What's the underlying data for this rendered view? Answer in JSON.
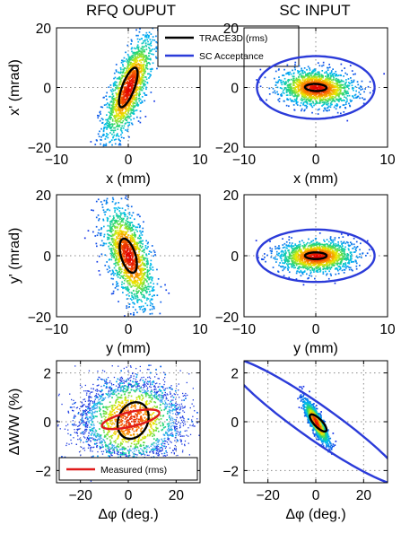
{
  "colors": {
    "black": "#000000",
    "blue": "#2b3bd9",
    "red": "#e01b1b",
    "grid": "#8a8a8a"
  },
  "column_titles": [
    "RFQ OUPUT",
    "SC INPUT"
  ],
  "chart_data": [
    {
      "type": "scatter",
      "panel": "x-rfq",
      "xlabel": "x (mm)",
      "ylabel": "x' (mrad)",
      "xlim": [
        -10,
        10
      ],
      "ylim": [
        -20,
        20
      ],
      "xticks": [
        -10,
        0,
        10
      ],
      "yticks": [
        -20,
        0,
        20
      ],
      "grid": true,
      "cloud": {
        "center": [
          0,
          0
        ],
        "sx": 1.7,
        "sy": 8.6,
        "rho": 0.72
      },
      "ellipses": [
        {
          "name": "TRACE3D (rms)",
          "color": "black",
          "center": [
            0,
            0
          ],
          "a": 1.3,
          "b": 6.6,
          "rho": 0.72
        }
      ],
      "legend": {
        "entries": [
          {
            "label": "TRACE3D (rms)",
            "color": "black"
          },
          {
            "label": "SC Acceptance",
            "color": "blue"
          }
        ],
        "position": "top-right"
      }
    },
    {
      "type": "scatter",
      "panel": "x-sc",
      "xlabel": "x (mm)",
      "ylabel": "",
      "xlim": [
        -10,
        10
      ],
      "ylim": [
        -20,
        20
      ],
      "xticks": [
        -10,
        0,
        10
      ],
      "yticks": [
        -20,
        0,
        20
      ],
      "grid": true,
      "cloud": {
        "center": [
          0,
          0
        ],
        "sx": 2.6,
        "sy": 3.0,
        "rho": -0.15
      },
      "ellipses": [
        {
          "name": "TRACE3D (rms)",
          "color": "black",
          "center": [
            0,
            0
          ],
          "a": 1.5,
          "b": 1.2,
          "rho": -0.1
        },
        {
          "name": "SC Acceptance",
          "color": "blue",
          "center": [
            0,
            0
          ],
          "a": 8.2,
          "b": 10.5,
          "rho": 0
        }
      ]
    },
    {
      "type": "scatter",
      "panel": "y-rfq",
      "xlabel": "y (mm)",
      "ylabel": "y' (mrad)",
      "xlim": [
        -10,
        10
      ],
      "ylim": [
        -20,
        20
      ],
      "xticks": [
        -10,
        0,
        10
      ],
      "yticks": [
        -20,
        0,
        20
      ],
      "grid": true,
      "cloud": {
        "center": [
          0,
          0
        ],
        "sx": 1.7,
        "sy": 8.0,
        "rho": -0.55
      },
      "ellipses": [
        {
          "name": "TRACE3D (rms)",
          "color": "black",
          "center": [
            0,
            0
          ],
          "a": 1.2,
          "b": 5.6,
          "rho": -0.5
        }
      ]
    },
    {
      "type": "scatter",
      "panel": "y-sc",
      "xlabel": "y (mm)",
      "ylabel": "",
      "xlim": [
        -10,
        10
      ],
      "ylim": [
        -20,
        20
      ],
      "xticks": [
        -10,
        0,
        10
      ],
      "yticks": [
        -20,
        0,
        20
      ],
      "grid": true,
      "cloud": {
        "center": [
          0,
          0
        ],
        "sx": 2.6,
        "sy": 2.6,
        "rho": 0.05
      },
      "ellipses": [
        {
          "name": "TRACE3D (rms)",
          "color": "black",
          "center": [
            0,
            0
          ],
          "a": 1.5,
          "b": 1.1,
          "rho": 0
        },
        {
          "name": "SC Acceptance",
          "color": "blue",
          "center": [
            0,
            0
          ],
          "a": 8.2,
          "b": 8.6,
          "rho": 0
        }
      ]
    },
    {
      "type": "scatter",
      "panel": "z-rfq",
      "xlabel": "Δφ (deg.)",
      "ylabel": "ΔW/W (%)",
      "xlim": [
        -30,
        30
      ],
      "ylim": [
        -2.5,
        2.5
      ],
      "xticks": [
        -20,
        0,
        20
      ],
      "yticks": [
        -2,
        0,
        2
      ],
      "grid": true,
      "cloud": {
        "center": [
          1,
          0.1
        ],
        "sx": 9,
        "sy": 0.8,
        "rho": 0.1,
        "halo": true
      },
      "ellipses": [
        {
          "name": "TRACE3D (rms)",
          "color": "black",
          "center": [
            2,
            0.05
          ],
          "a": 6.5,
          "b": 0.75,
          "rho": 0.2
        },
        {
          "name": "Measured (rms)",
          "color": "red",
          "center": [
            1,
            0.1
          ],
          "a": 12,
          "b": 0.4,
          "rho": 0.65
        }
      ],
      "legend": {
        "entries": [
          {
            "label": "Measured (rms)",
            "color": "red"
          }
        ],
        "position": "bottom-left"
      }
    },
    {
      "type": "scatter",
      "panel": "z-sc",
      "xlabel": "Δφ (deg.)",
      "ylabel": "",
      "xlim": [
        -30,
        30
      ],
      "ylim": [
        -2.5,
        2.5
      ],
      "xticks": [
        -20,
        0,
        20
      ],
      "yticks": [
        -2,
        0,
        2
      ],
      "grid": true,
      "cloud": {
        "center": [
          0,
          0
        ],
        "sx": 2.5,
        "sy": 0.42,
        "rho": -0.85
      },
      "ellipses": [
        {
          "name": "TRACE3D (rms)",
          "color": "black",
          "center": [
            1,
            -0.05
          ],
          "a": 3.5,
          "b": 0.35,
          "rho": -0.78
        },
        {
          "name": "SC Acceptance",
          "color": "blue",
          "center": [
            0,
            0
          ],
          "a": 37,
          "b": 2.6,
          "rho": -0.945
        }
      ]
    }
  ]
}
